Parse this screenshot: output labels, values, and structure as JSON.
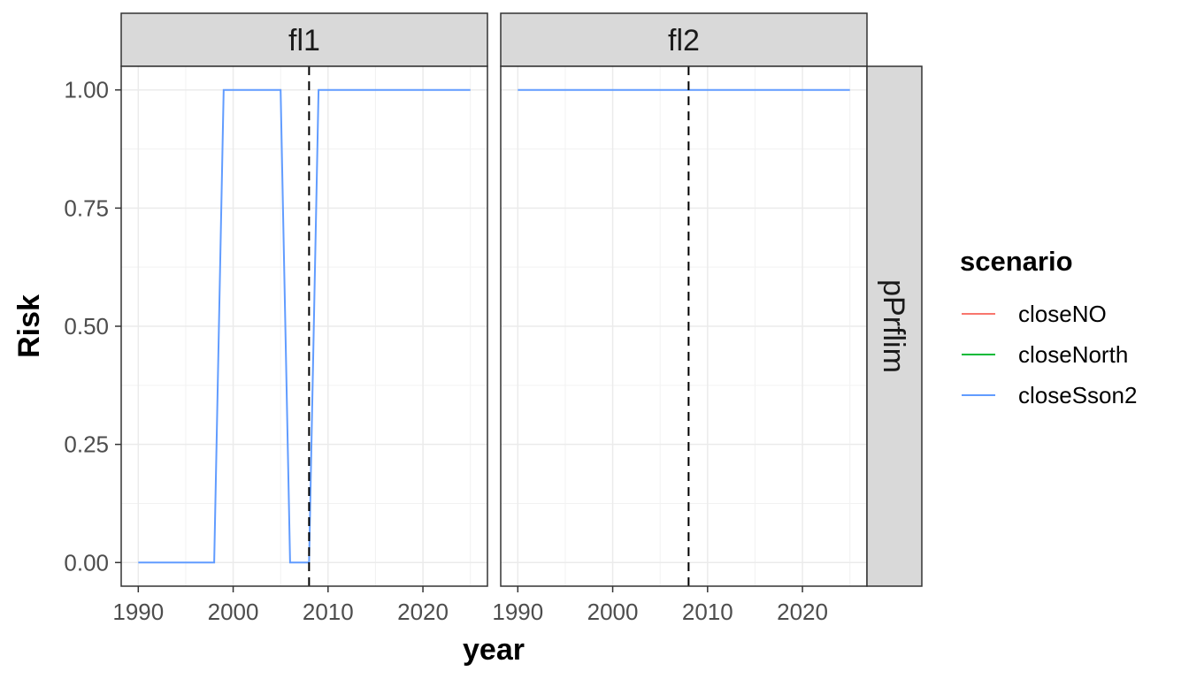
{
  "chart_data": {
    "type": "line",
    "xlabel": "year",
    "ylabel": "Risk",
    "xlim": [
      1988.2,
      2026.8
    ],
    "ylim": [
      -0.05,
      1.05
    ],
    "x_ticks": [
      1990,
      2000,
      2010,
      2020
    ],
    "y_ticks": [
      0.0,
      0.25,
      0.5,
      0.75,
      1.0
    ],
    "y_tick_labels": [
      "0.00",
      "0.25",
      "0.50",
      "0.75",
      "1.00"
    ],
    "grid": true,
    "facet_row_label": "pPrflim",
    "vline_x": 2008,
    "legend": {
      "title": "scenario",
      "position": "right",
      "entries": [
        {
          "name": "closeNO",
          "color": "#F8766D"
        },
        {
          "name": "closeNorth",
          "color": "#00BA38"
        },
        {
          "name": "closeSson2",
          "color": "#619CFF"
        }
      ]
    },
    "panels": [
      {
        "label": "fl1",
        "series": [
          {
            "name": "closeSson2",
            "color": "#619CFF",
            "x": [
              1990,
              1998,
              1999,
              2005,
              2006,
              2008,
              2009,
              2025
            ],
            "y": [
              0,
              0,
              1,
              1,
              0,
              0,
              1,
              1
            ]
          }
        ]
      },
      {
        "label": "fl2",
        "series": [
          {
            "name": "closeSson2",
            "color": "#619CFF",
            "x": [
              1990,
              2025
            ],
            "y": [
              1,
              1
            ]
          }
        ]
      }
    ]
  }
}
